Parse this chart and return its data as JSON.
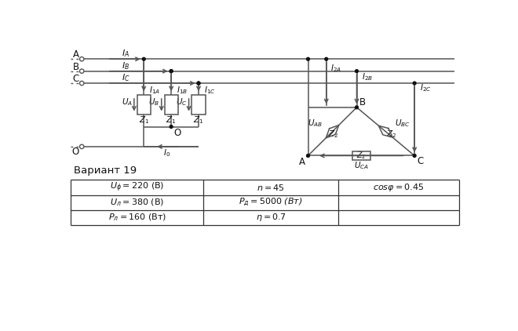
{
  "variant_text": "Вариант 19",
  "table_rows": [
    [
      "U_phi = 220 (В)",
      "n = 45",
      "cosφ = 0.45"
    ],
    [
      "U_л = 380 (В)",
      "P_д = 5000 (Вт)",
      ""
    ],
    [
      "P_л = 160 (Вт)",
      "η = 0.7",
      ""
    ]
  ],
  "line_color": "#555555",
  "dot_color": "#111111",
  "bg_color": "#ffffff",
  "text_color": "#111111"
}
